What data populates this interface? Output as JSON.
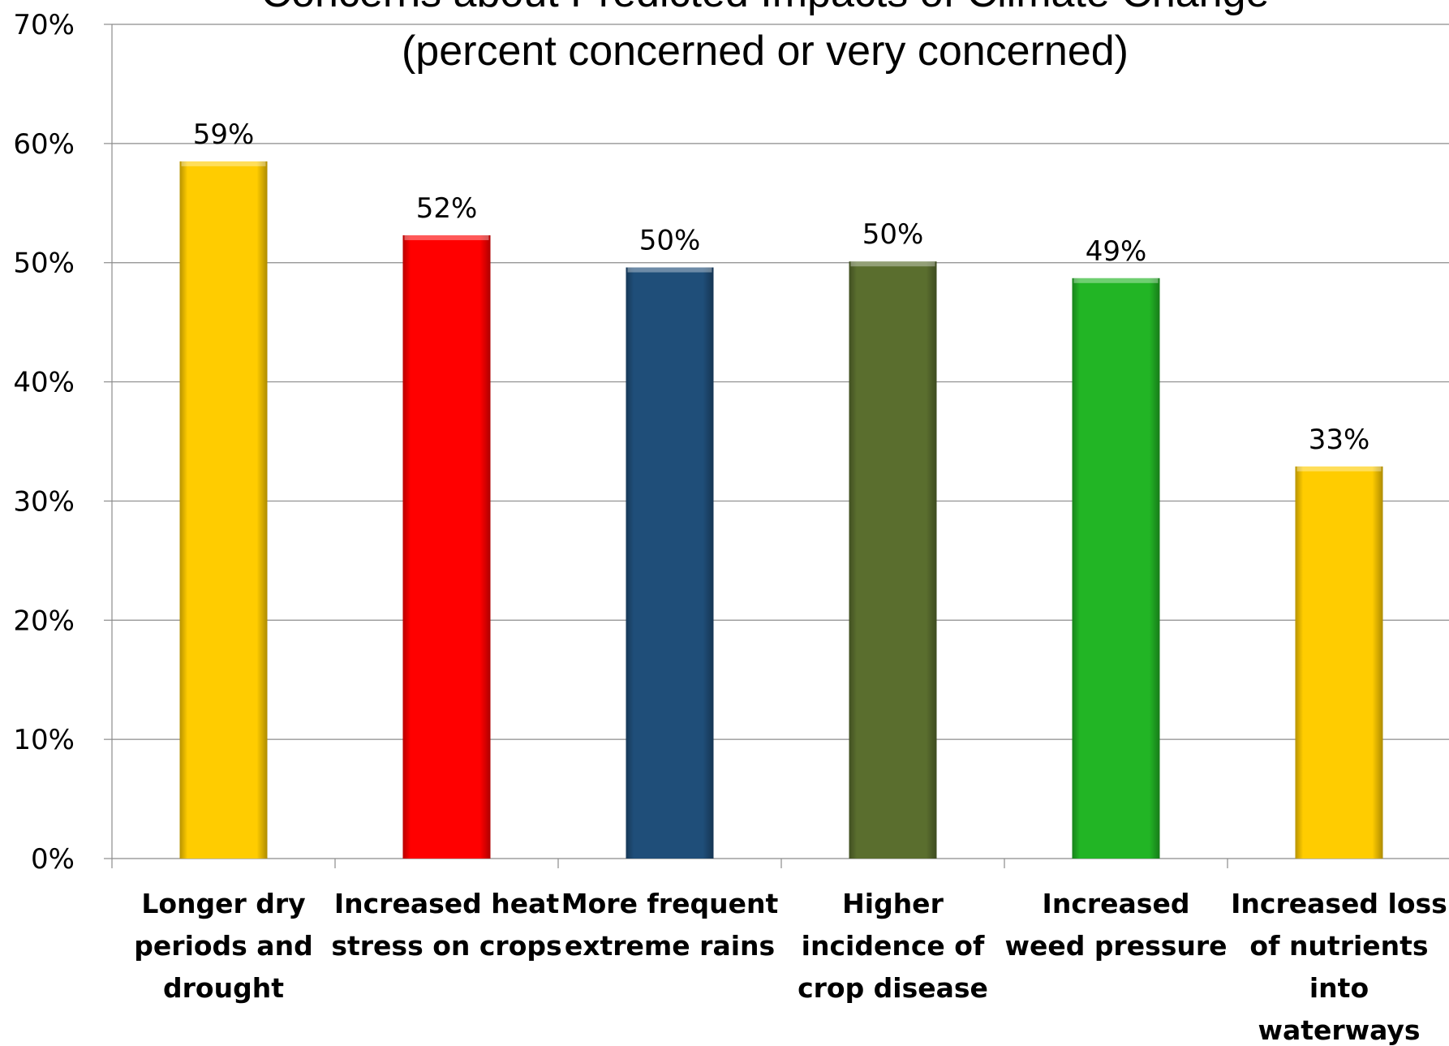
{
  "chart_data": {
    "type": "bar",
    "title": "Concerns about Predicted Impacts of Climate Change",
    "subtitle": "(percent concerned or very concerned)",
    "categories": [
      [
        "Longer dry",
        "periods and",
        "drought"
      ],
      [
        "Increased heat",
        "stress on crops"
      ],
      [
        "More frequent",
        "extreme rains"
      ],
      [
        "Higher",
        "incidence of",
        "crop disease"
      ],
      [
        "Increased",
        "weed pressure"
      ],
      [
        "Increased loss",
        "of nutrients",
        "into",
        "waterways"
      ]
    ],
    "values": [
      58.5,
      52.3,
      49.6,
      50.1,
      48.7,
      32.9
    ],
    "data_labels": [
      "59%",
      "52%",
      "50%",
      "50%",
      "49%",
      "33%"
    ],
    "colors": [
      "#FFCC00",
      "#FF0000",
      "#1F4E79",
      "#5A6E2E",
      "#22B525",
      "#FFCC00"
    ],
    "ylim": [
      0,
      70
    ],
    "yticks": [
      0,
      10,
      20,
      30,
      40,
      50,
      60,
      70
    ],
    "ytick_labels": [
      "0%",
      "10%",
      "20%",
      "30%",
      "40%",
      "50%",
      "60%",
      "70%"
    ],
    "xlabel": "",
    "ylabel": "",
    "grid": true,
    "legend": "none"
  }
}
